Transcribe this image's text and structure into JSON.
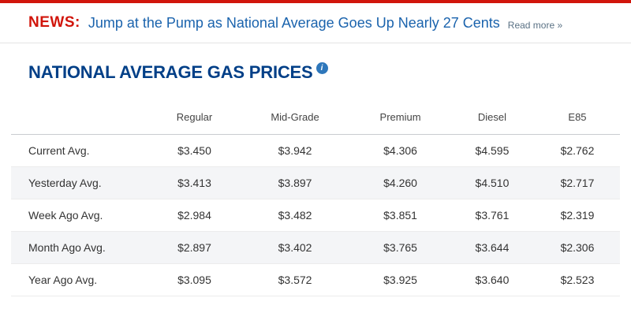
{
  "news": {
    "label": "NEWS:",
    "headline": "Jump at the Pump as National Average Goes Up Nearly 27 Cents",
    "read_more": "Read more »"
  },
  "section": {
    "title": "NATIONAL AVERAGE GAS PRICES",
    "info_glyph": "i"
  },
  "table": {
    "columns": [
      "Regular",
      "Mid-Grade",
      "Premium",
      "Diesel",
      "E85"
    ],
    "rows": [
      {
        "label": "Current Avg.",
        "values": [
          "$3.450",
          "$3.942",
          "$4.306",
          "$4.595",
          "$2.762"
        ]
      },
      {
        "label": "Yesterday Avg.",
        "values": [
          "$3.413",
          "$3.897",
          "$4.260",
          "$4.510",
          "$2.717"
        ]
      },
      {
        "label": "Week Ago Avg.",
        "values": [
          "$2.984",
          "$3.482",
          "$3.851",
          "$3.761",
          "$2.319"
        ]
      },
      {
        "label": "Month Ago Avg.",
        "values": [
          "$2.897",
          "$3.402",
          "$3.765",
          "$3.644",
          "$2.306"
        ]
      },
      {
        "label": "Year Ago Avg.",
        "values": [
          "$3.095",
          "$3.572",
          "$3.925",
          "$3.640",
          "$2.523"
        ]
      }
    ]
  },
  "colors": {
    "news_red": "#d1150b",
    "headline_blue": "#1a63ad",
    "title_blue": "#003f87",
    "stripe_gray": "#f4f5f7"
  }
}
